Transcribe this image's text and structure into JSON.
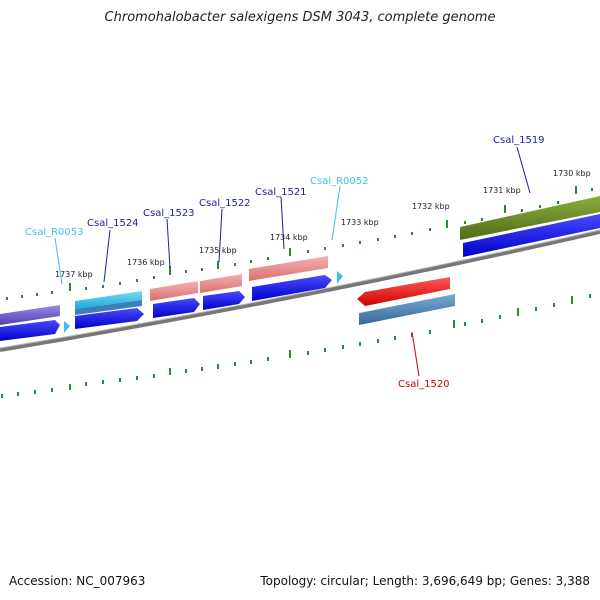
{
  "title": "Chromohalobacter salexigens DSM 3043, complete genome",
  "footer": {
    "accession": "Accession: NC_007963",
    "summary": "Topology: circular; Length: 3,696,649 bp; Genes: 3,388"
  },
  "colors": {
    "outer_light_blue": "#3fc0ec",
    "gene_blue": "#1e1ee6",
    "pink": "#e88a8a",
    "olive": "#6b8a2a",
    "purple": "#7060c8",
    "red": "#e42222",
    "steel_blue": "#4a7fb0",
    "axis_gray": "#888888",
    "tick_green": "#2e8a2e"
  },
  "ruler_labels": [
    "1737 kbp",
    "1736 kbp",
    "1735 kbp",
    "1734 kbp",
    "1733 kbp",
    "1732 kbp",
    "1731 kbp",
    "1730 kbp"
  ],
  "gene_labels": [
    "Csal_R0053",
    "Csal_1524",
    "Csal_1523",
    "Csal_1522",
    "Csal_1521",
    "Csal_R0052",
    "Csal_1519",
    "Csal_1520"
  ]
}
